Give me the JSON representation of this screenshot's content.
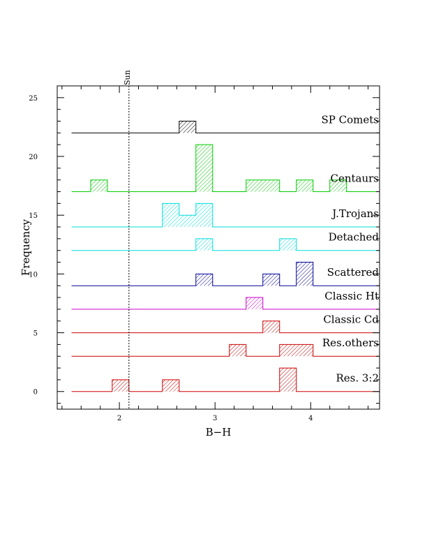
{
  "chart_data": {
    "type": "histogram-stack",
    "xlabel": "B−H",
    "ylabel": "Frequency",
    "xlim": [
      1.35,
      4.72
    ],
    "ylim": [
      -1.5,
      26
    ],
    "xticks": [
      2,
      3,
      4
    ],
    "yticks": [
      0,
      5,
      10,
      15,
      20,
      25
    ],
    "bin_width": 0.175,
    "reference_line": {
      "label": "Sun",
      "x": 2.1
    },
    "series": [
      {
        "name": "SP Comets",
        "baseline": 22,
        "color": "#000000",
        "x_start": 1.5,
        "bars": [
          {
            "x0": 2.625,
            "x1": 2.8,
            "count": 1
          }
        ]
      },
      {
        "name": "Centaurs",
        "baseline": 17,
        "color": "#00cc00",
        "x_start": 1.5,
        "bars": [
          {
            "x0": 1.7,
            "x1": 1.875,
            "count": 1
          },
          {
            "x0": 2.8,
            "x1": 2.975,
            "count": 4
          },
          {
            "x0": 3.325,
            "x1": 3.675,
            "count": 1
          },
          {
            "x0": 3.85,
            "x1": 4.025,
            "count": 1
          },
          {
            "x0": 4.2,
            "x1": 4.375,
            "count": 1
          }
        ]
      },
      {
        "name": "J.Trojans",
        "baseline": 14,
        "color": "#00dddd",
        "x_start": 1.5,
        "bars": [
          {
            "x0": 2.45,
            "x1": 2.625,
            "count": 2
          },
          {
            "x0": 2.625,
            "x1": 2.8,
            "count": 1
          },
          {
            "x0": 2.8,
            "x1": 2.975,
            "count": 2
          }
        ]
      },
      {
        "name": "Detached",
        "baseline": 12,
        "color": "#00dddd",
        "x_start": 1.5,
        "bars": [
          {
            "x0": 2.8,
            "x1": 2.975,
            "count": 1
          },
          {
            "x0": 3.675,
            "x1": 3.85,
            "count": 1
          }
        ]
      },
      {
        "name": "Scattered",
        "baseline": 9,
        "color": "#000099",
        "x_start": 1.5,
        "bars": [
          {
            "x0": 2.8,
            "x1": 2.975,
            "count": 1
          },
          {
            "x0": 3.5,
            "x1": 3.675,
            "count": 1
          },
          {
            "x0": 3.85,
            "x1": 4.025,
            "count": 2
          }
        ]
      },
      {
        "name": "Classic Ht",
        "baseline": 7,
        "color": "#cc00cc",
        "x_start": 1.5,
        "bars": [
          {
            "x0": 3.325,
            "x1": 3.5,
            "count": 1
          }
        ]
      },
      {
        "name": "Classic Cd",
        "baseline": 5,
        "color": "#cc0000",
        "x_start": 1.5,
        "bars": [
          {
            "x0": 3.5,
            "x1": 3.675,
            "count": 1
          }
        ]
      },
      {
        "name": "Res.others",
        "baseline": 3,
        "color": "#cc0000",
        "x_start": 1.5,
        "bars": [
          {
            "x0": 3.15,
            "x1": 3.325,
            "count": 1
          },
          {
            "x0": 3.675,
            "x1": 4.025,
            "count": 1
          }
        ]
      },
      {
        "name": "Res. 3:2",
        "baseline": 0,
        "color": "#cc0000",
        "x_start": 1.5,
        "bars": [
          {
            "x0": 1.925,
            "x1": 2.1,
            "count": 1
          },
          {
            "x0": 2.45,
            "x1": 2.625,
            "count": 1
          },
          {
            "x0": 3.675,
            "x1": 3.85,
            "count": 2
          }
        ]
      }
    ]
  }
}
